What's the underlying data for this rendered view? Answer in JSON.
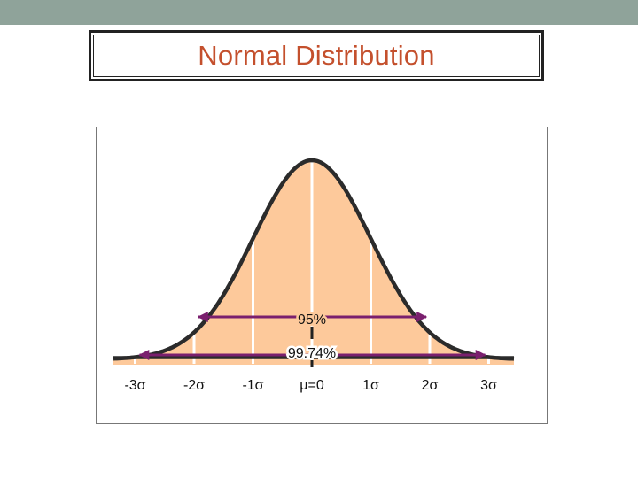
{
  "title": "Normal Distribution",
  "colors": {
    "top_bar": "#8fa39a",
    "title": "#c4502d",
    "fill": "#fdc99b",
    "curve": "#2b2b2b",
    "arrow": "#7a1f6e",
    "sigma_line": "#ffffff"
  },
  "chart_data": {
    "type": "area",
    "distribution": "normal",
    "mean": 0,
    "sd": 1,
    "xlim": [
      -3.2,
      3.5
    ],
    "sigma_lines": [
      -3,
      -2,
      -1,
      0,
      1,
      2,
      3
    ],
    "tick_labels": [
      "-3σ",
      "-2σ",
      "-1σ",
      "μ=0",
      "1σ",
      "2σ",
      "3σ"
    ],
    "intervals": [
      {
        "label": "95%",
        "from": -2,
        "to": 2
      },
      {
        "label": "99.74%",
        "from": -3,
        "to": 3
      }
    ]
  }
}
